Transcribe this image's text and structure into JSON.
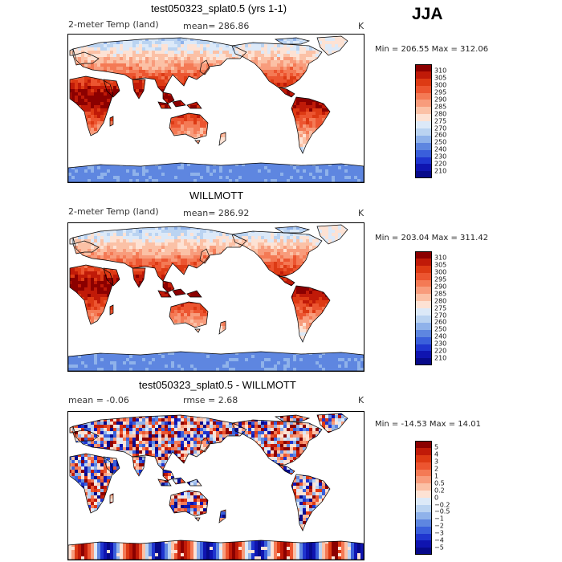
{
  "season": "JJA",
  "panels": [
    {
      "title": "test050323_splat0.5 (yrs 1-1)",
      "variable": "2-meter Temp (land)",
      "stat_left": "mean= 286.86",
      "stat_mid": "",
      "units": "K",
      "range_text": "Min = 206.55 Max = 312.06",
      "map_style": "absolute",
      "colorbar": {
        "labels": [
          "310",
          "305",
          "300",
          "295",
          "290",
          "285",
          "280",
          "275",
          "270",
          "260",
          "250",
          "240",
          "230",
          "220",
          "210"
        ],
        "colors": [
          "#8b0000",
          "#c01a08",
          "#dd3a14",
          "#ec5530",
          "#f47a55",
          "#f89c7c",
          "#fbc1a6",
          "#fde2d4",
          "#dce9f8",
          "#bad3f1",
          "#8fb2ea",
          "#5e86e0",
          "#3a5fdb",
          "#1f35cf",
          "#0f14b0",
          "#070a8a"
        ]
      }
    },
    {
      "title": "WILLMOTT",
      "variable": "2-meter Temp (land)",
      "stat_left": "mean= 286.92",
      "stat_mid": "",
      "units": "K",
      "range_text": "Min = 203.04 Max = 311.42",
      "map_style": "absolute",
      "colorbar": {
        "labels": [
          "310",
          "305",
          "300",
          "295",
          "290",
          "285",
          "280",
          "275",
          "270",
          "260",
          "250",
          "240",
          "230",
          "220",
          "210"
        ],
        "colors": [
          "#8b0000",
          "#c01a08",
          "#dd3a14",
          "#ec5530",
          "#f47a55",
          "#f89c7c",
          "#fbc1a6",
          "#fde2d4",
          "#dce9f8",
          "#bad3f1",
          "#8fb2ea",
          "#5e86e0",
          "#3a5fdb",
          "#1f35cf",
          "#0f14b0",
          "#070a8a"
        ]
      }
    },
    {
      "title": "test050323_splat0.5 - WILLMOTT",
      "variable": "",
      "stat_left": "mean =   -0.06",
      "stat_mid": "rmse =    2.68",
      "units": "K",
      "range_text": "Min = -14.53 Max =   14.01",
      "map_style": "difference",
      "colorbar": {
        "labels": [
          "5",
          "4",
          "3",
          "2",
          "1",
          "0.5",
          "0.2",
          "0",
          "−0.2",
          "−0.5",
          "−1",
          "−2",
          "−3",
          "−4",
          "−5"
        ],
        "colors": [
          "#8b0000",
          "#c01a08",
          "#dd3a14",
          "#ec5530",
          "#f47a55",
          "#f89c7c",
          "#fbc1a6",
          "#fde2d4",
          "#dce9f8",
          "#bad3f1",
          "#8fb2ea",
          "#5e86e0",
          "#3a5fdb",
          "#1f35cf",
          "#0f14b0",
          "#070a8a"
        ]
      }
    }
  ]
}
